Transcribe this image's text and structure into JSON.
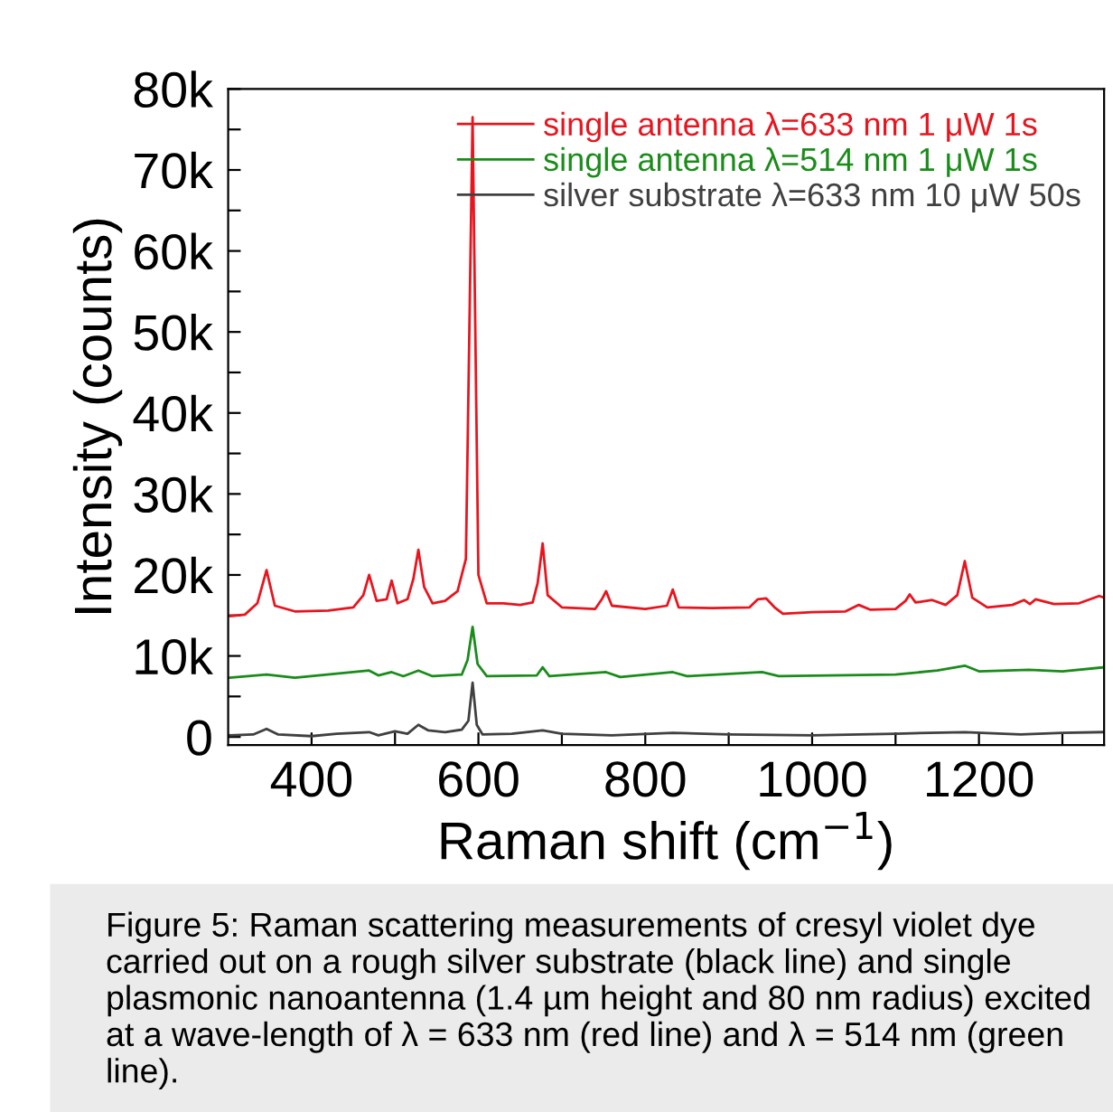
{
  "chart_data": {
    "type": "line",
    "xlabel": "Raman shift (cm$^{−1}$)",
    "ylabel": "Intensity (counts)",
    "annotations": [
      "Figure 5: Raman scattering measurements of cresyl violet dye carried out on a rough silver substrate (black line) and single plasmonic nanoantenna (1.4 µm height and 80 nm radius) excited at a wave-length of λ = 633 nm (red line) and λ = 514 nm (green line)."
    ],
    "xlim": [
      300,
      1350
    ],
    "ylim": [
      -1000,
      80000
    ],
    "xticks": [
      400,
      {
        "value": 500,
        "label": null
      },
      600,
      {
        "value": 700,
        "label": null
      },
      800,
      {
        "value": 900,
        "label": null
      },
      1000,
      {
        "value": 1100,
        "label": null
      },
      1200,
      {
        "value": 1300,
        "label": null
      }
    ],
    "yticks": [
      {
        "value": 0,
        "label": "0"
      },
      {
        "value": 5000,
        "label": null
      },
      {
        "value": 10000,
        "label": "10k"
      },
      {
        "value": 15000,
        "label": null
      },
      {
        "value": 20000,
        "label": "20k"
      },
      {
        "value": 25000,
        "label": null
      },
      {
        "value": 30000,
        "label": "30k"
      },
      {
        "value": 35000,
        "label": null
      },
      {
        "value": 40000,
        "label": "40k"
      },
      {
        "value": 45000,
        "label": null
      },
      {
        "value": 50000,
        "label": "50k"
      },
      {
        "value": 55000,
        "label": null
      },
      {
        "value": 60000,
        "label": "60k"
      },
      {
        "value": 65000,
        "label": null
      },
      {
        "value": 70000,
        "label": "70k"
      },
      {
        "value": 75000,
        "label": null
      },
      {
        "value": 80000,
        "label": "80k"
      }
    ],
    "grid": false,
    "legend": "top right",
    "marker": "none",
    "line_style": "solid",
    "series": [
      {
        "name": "single antenna λ=633 nm 1 μW 1s",
        "color": "#e8141e",
        "x": [
          300,
          320,
          335,
          346,
          356,
          380,
          420,
          450,
          462,
          469,
          478,
          490,
          496,
          503,
          515,
          522,
          528,
          535,
          545,
          560,
          575,
          585,
          593,
          600,
          610,
          630,
          650,
          665,
          671,
          677,
          683,
          700,
          740,
          748,
          753,
          760,
          800,
          826,
          833,
          840,
          880,
          925,
          935,
          945,
          955,
          965,
          1000,
          1040,
          1056,
          1070,
          1100,
          1112,
          1117,
          1124,
          1144,
          1160,
          1174,
          1183,
          1192,
          1210,
          1240,
          1254,
          1261,
          1268,
          1290,
          1320,
          1344,
          1350
        ],
        "values": [
          14900,
          15100,
          16500,
          20600,
          16200,
          15500,
          15600,
          16000,
          17500,
          20000,
          16800,
          17000,
          19300,
          16500,
          17000,
          19500,
          23100,
          18500,
          16500,
          16800,
          18000,
          22000,
          76500,
          20000,
          16500,
          16500,
          16300,
          16600,
          19000,
          23900,
          17500,
          16000,
          15800,
          17000,
          18000,
          16200,
          15800,
          16200,
          18200,
          16000,
          15900,
          16000,
          17000,
          17100,
          16000,
          15200,
          15400,
          15500,
          16300,
          15700,
          15800,
          16800,
          17600,
          16600,
          16900,
          16300,
          17500,
          21700,
          17200,
          16000,
          16300,
          16900,
          16400,
          17000,
          16400,
          16500,
          17400,
          17200
        ]
      },
      {
        "name": "single antenna λ=514 nm 1 μW 1s",
        "color": "#1a8c1a",
        "x": [
          300,
          346,
          380,
          469,
          480,
          496,
          510,
          528,
          545,
          580,
          587,
          593,
          599,
          610,
          670,
          677,
          685,
          753,
          770,
          833,
          850,
          940,
          960,
          1100,
          1150,
          1183,
          1200,
          1260,
          1300,
          1350
        ],
        "values": [
          7300,
          7700,
          7300,
          8200,
          7600,
          8000,
          7500,
          8200,
          7500,
          7700,
          9500,
          13600,
          9000,
          7500,
          7600,
          8600,
          7500,
          8000,
          7400,
          8000,
          7500,
          8000,
          7500,
          7700,
          8200,
          8800,
          8100,
          8300,
          8100,
          8600
        ]
      },
      {
        "name": "silver substrate λ=633 nm 10 μW 50s",
        "color": "#404040",
        "x": [
          300,
          330,
          346,
          360,
          400,
          430,
          469,
          480,
          500,
          515,
          528,
          540,
          560,
          580,
          588,
          593,
          598,
          605,
          640,
          677,
          700,
          760,
          833,
          900,
          1000,
          1100,
          1183,
          1250,
          1300,
          1350
        ],
        "values": [
          200,
          300,
          1000,
          300,
          100,
          400,
          600,
          200,
          700,
          400,
          1500,
          800,
          600,
          900,
          2000,
          6700,
          1500,
          300,
          400,
          800,
          400,
          200,
          500,
          300,
          200,
          400,
          600,
          300,
          500,
          600
        ]
      }
    ]
  }
}
